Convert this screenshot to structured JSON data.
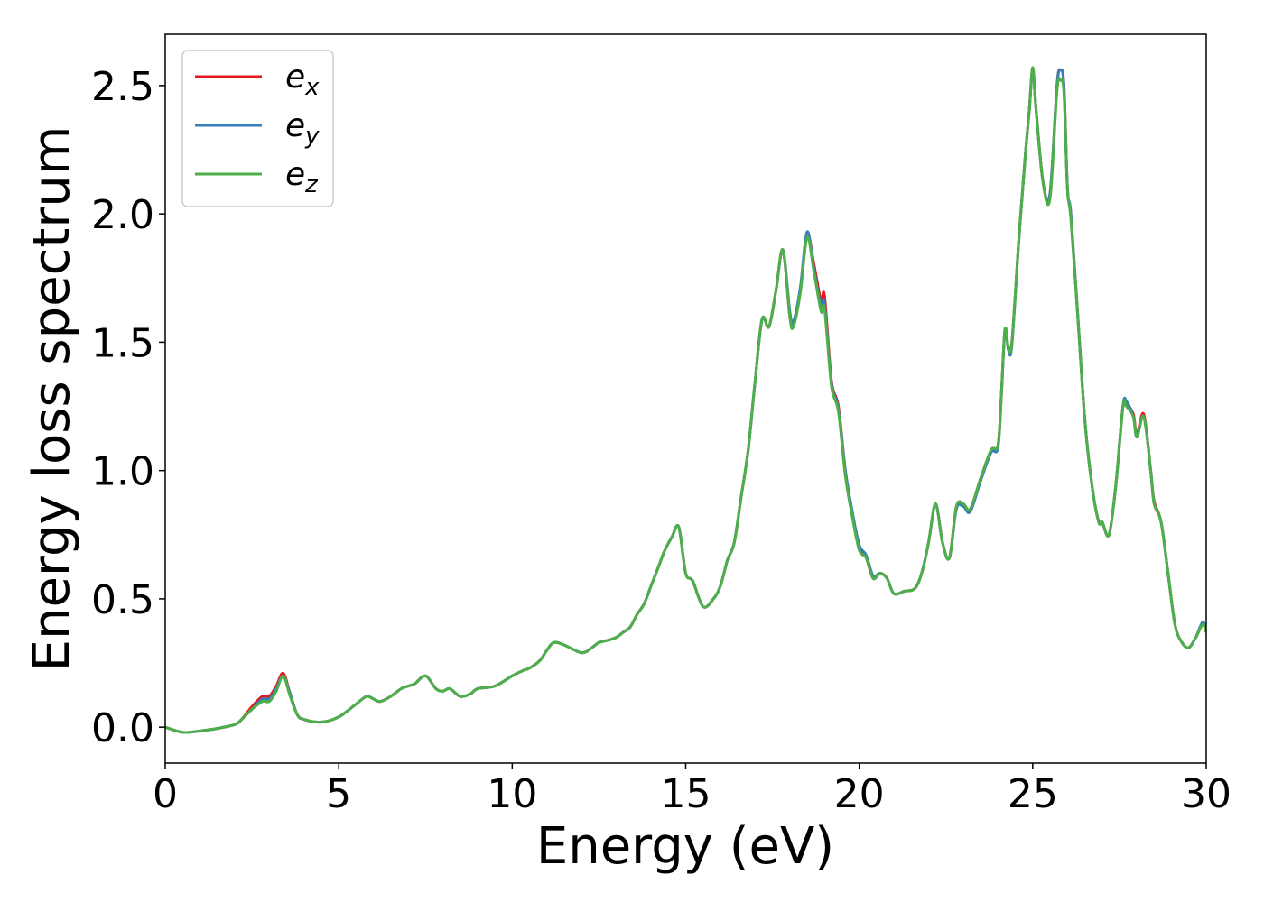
{
  "chart_data": {
    "type": "line",
    "title": "",
    "xlabel": "Energy (eV)",
    "ylabel": "Energy loss spectrum",
    "xlim": [
      0,
      30
    ],
    "ylim": [
      -0.14,
      2.7
    ],
    "xticks": [
      "0",
      "5",
      "10",
      "15",
      "20",
      "25",
      "30"
    ],
    "yticks": [
      "0.0",
      "0.5",
      "1.0",
      "1.5",
      "2.0",
      "2.5"
    ],
    "xtick_values": [
      0,
      5,
      10,
      15,
      20,
      25,
      30
    ],
    "ytick_values": [
      0.0,
      0.5,
      1.0,
      1.5,
      2.0,
      2.5
    ],
    "grid": false,
    "legend_position": "top-left",
    "x": [
      0,
      0.5,
      1.0,
      1.5,
      2.0,
      2.2,
      2.5,
      2.8,
      3.0,
      3.2,
      3.4,
      3.6,
      3.8,
      4.0,
      4.5,
      5.0,
      5.5,
      5.8,
      6.0,
      6.2,
      6.5,
      6.8,
      7.0,
      7.2,
      7.5,
      7.8,
      8.0,
      8.2,
      8.5,
      8.8,
      9.0,
      9.5,
      10.0,
      10.3,
      10.5,
      10.8,
      11.0,
      11.2,
      11.5,
      12.0,
      12.3,
      12.5,
      12.8,
      13.0,
      13.2,
      13.4,
      13.6,
      13.8,
      14.0,
      14.2,
      14.4,
      14.6,
      14.8,
      15.0,
      15.2,
      15.5,
      15.8,
      16.0,
      16.2,
      16.4,
      16.6,
      16.8,
      17.0,
      17.2,
      17.4,
      17.6,
      17.8,
      18.0,
      18.1,
      18.3,
      18.5,
      18.7,
      18.9,
      19.0,
      19.2,
      19.4,
      19.6,
      19.8,
      20.0,
      20.2,
      20.4,
      20.6,
      20.8,
      21.0,
      21.3,
      21.6,
      21.8,
      22.0,
      22.2,
      22.4,
      22.6,
      22.8,
      23.0,
      23.2,
      23.5,
      23.8,
      24.0,
      24.1,
      24.2,
      24.3,
      24.4,
      24.6,
      24.8,
      24.9,
      25.0,
      25.1,
      25.3,
      25.5,
      25.7,
      25.8,
      25.9,
      26.0,
      26.1,
      26.3,
      26.5,
      26.7,
      26.9,
      27.0,
      27.2,
      27.4,
      27.6,
      27.7,
      27.9,
      28.0,
      28.2,
      28.4,
      28.5,
      28.7,
      28.9,
      29.1,
      29.3,
      29.5,
      29.7,
      29.9,
      30.0
    ],
    "series": [
      {
        "name": "e_x",
        "label_base": "e",
        "label_sub": "x",
        "color": "#e41a1c",
        "values": [
          0.0,
          -0.02,
          -0.015,
          -0.005,
          0.01,
          0.03,
          0.08,
          0.12,
          0.12,
          0.16,
          0.21,
          0.13,
          0.05,
          0.03,
          0.02,
          0.04,
          0.09,
          0.12,
          0.11,
          0.1,
          0.12,
          0.15,
          0.16,
          0.17,
          0.2,
          0.15,
          0.14,
          0.15,
          0.12,
          0.13,
          0.15,
          0.16,
          0.2,
          0.22,
          0.23,
          0.26,
          0.3,
          0.33,
          0.32,
          0.29,
          0.31,
          0.33,
          0.34,
          0.35,
          0.37,
          0.39,
          0.44,
          0.48,
          0.55,
          0.62,
          0.69,
          0.74,
          0.78,
          0.6,
          0.57,
          0.47,
          0.5,
          0.55,
          0.65,
          0.72,
          0.9,
          1.08,
          1.35,
          1.59,
          1.56,
          1.7,
          1.86,
          1.6,
          1.57,
          1.7,
          1.92,
          1.8,
          1.66,
          1.68,
          1.35,
          1.25,
          1.0,
          0.83,
          0.7,
          0.66,
          0.58,
          0.6,
          0.58,
          0.52,
          0.53,
          0.54,
          0.6,
          0.72,
          0.87,
          0.72,
          0.66,
          0.86,
          0.87,
          0.85,
          0.97,
          1.08,
          1.1,
          1.3,
          1.55,
          1.48,
          1.5,
          1.9,
          2.25,
          2.4,
          2.57,
          2.4,
          2.12,
          2.08,
          2.5,
          2.56,
          2.5,
          2.1,
          2.0,
          1.6,
          1.2,
          0.95,
          0.8,
          0.8,
          0.75,
          0.95,
          1.25,
          1.26,
          1.22,
          1.14,
          1.22,
          1.0,
          0.88,
          0.8,
          0.6,
          0.4,
          0.33,
          0.31,
          0.35,
          0.4,
          0.37
        ]
      },
      {
        "name": "e_y",
        "label_base": "e",
        "label_sub": "y",
        "color": "#377eb8",
        "values": [
          0.0,
          -0.02,
          -0.015,
          -0.005,
          0.01,
          0.03,
          0.07,
          0.11,
          0.11,
          0.15,
          0.2,
          0.13,
          0.05,
          0.03,
          0.02,
          0.04,
          0.09,
          0.12,
          0.11,
          0.1,
          0.12,
          0.15,
          0.16,
          0.17,
          0.2,
          0.15,
          0.14,
          0.15,
          0.12,
          0.13,
          0.15,
          0.16,
          0.2,
          0.22,
          0.23,
          0.26,
          0.3,
          0.33,
          0.32,
          0.29,
          0.31,
          0.33,
          0.34,
          0.35,
          0.37,
          0.39,
          0.44,
          0.48,
          0.55,
          0.62,
          0.69,
          0.74,
          0.78,
          0.6,
          0.57,
          0.47,
          0.5,
          0.55,
          0.65,
          0.72,
          0.9,
          1.08,
          1.35,
          1.59,
          1.56,
          1.7,
          1.86,
          1.62,
          1.58,
          1.71,
          1.93,
          1.78,
          1.64,
          1.65,
          1.34,
          1.24,
          1.0,
          0.84,
          0.71,
          0.67,
          0.59,
          0.6,
          0.58,
          0.52,
          0.53,
          0.54,
          0.6,
          0.72,
          0.87,
          0.72,
          0.66,
          0.85,
          0.86,
          0.84,
          0.96,
          1.07,
          1.09,
          1.3,
          1.55,
          1.47,
          1.49,
          1.9,
          2.25,
          2.4,
          2.56,
          2.4,
          2.12,
          2.08,
          2.5,
          2.56,
          2.5,
          2.1,
          2.0,
          1.6,
          1.2,
          0.95,
          0.8,
          0.8,
          0.75,
          0.95,
          1.25,
          1.27,
          1.21,
          1.13,
          1.21,
          1.0,
          0.87,
          0.8,
          0.6,
          0.4,
          0.33,
          0.31,
          0.35,
          0.41,
          0.37
        ]
      },
      {
        "name": "e_z",
        "label_base": "e",
        "label_sub": "z",
        "color": "#4daf4a",
        "values": [
          0.0,
          -0.02,
          -0.015,
          -0.005,
          0.01,
          0.03,
          0.07,
          0.1,
          0.1,
          0.14,
          0.2,
          0.12,
          0.05,
          0.03,
          0.02,
          0.04,
          0.09,
          0.12,
          0.11,
          0.1,
          0.12,
          0.15,
          0.16,
          0.17,
          0.2,
          0.15,
          0.14,
          0.15,
          0.12,
          0.13,
          0.15,
          0.16,
          0.2,
          0.22,
          0.23,
          0.26,
          0.3,
          0.33,
          0.32,
          0.29,
          0.31,
          0.33,
          0.34,
          0.35,
          0.37,
          0.39,
          0.44,
          0.48,
          0.55,
          0.62,
          0.69,
          0.74,
          0.78,
          0.6,
          0.57,
          0.47,
          0.5,
          0.55,
          0.65,
          0.72,
          0.9,
          1.08,
          1.35,
          1.59,
          1.56,
          1.7,
          1.86,
          1.6,
          1.56,
          1.69,
          1.91,
          1.77,
          1.62,
          1.63,
          1.33,
          1.23,
          0.98,
          0.82,
          0.69,
          0.66,
          0.58,
          0.6,
          0.58,
          0.52,
          0.53,
          0.54,
          0.6,
          0.72,
          0.87,
          0.72,
          0.66,
          0.86,
          0.87,
          0.85,
          0.97,
          1.08,
          1.1,
          1.3,
          1.55,
          1.48,
          1.5,
          1.9,
          2.25,
          2.4,
          2.57,
          2.4,
          2.12,
          2.06,
          2.48,
          2.52,
          2.47,
          2.1,
          1.98,
          1.6,
          1.2,
          0.95,
          0.8,
          0.8,
          0.75,
          0.95,
          1.25,
          1.25,
          1.21,
          1.13,
          1.21,
          1.0,
          0.87,
          0.8,
          0.6,
          0.4,
          0.33,
          0.31,
          0.35,
          0.4,
          0.37
        ]
      }
    ]
  }
}
